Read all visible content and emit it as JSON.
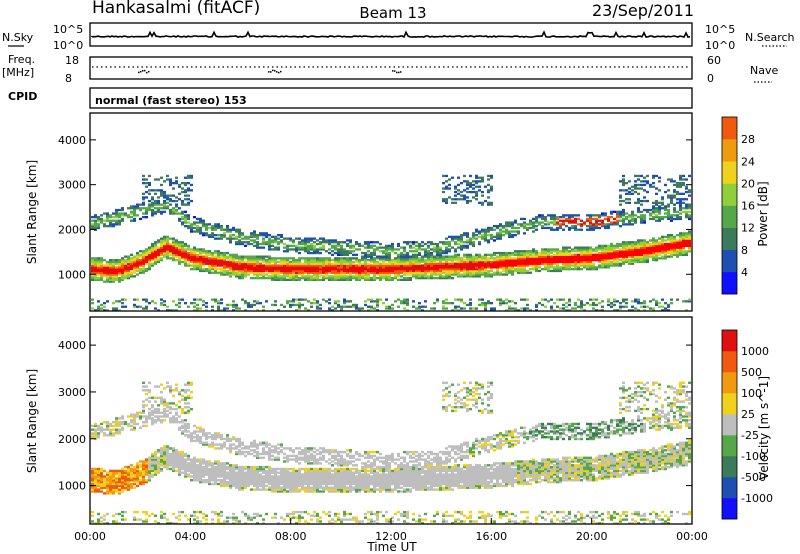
{
  "header": {
    "station": "Hankasalmi (fitACF)",
    "beam": "Beam 13",
    "date": "23/Sep/2011"
  },
  "status_panel": {
    "nsky_label": "N.Sky",
    "nsky_ymax": "10^5",
    "nsky_ymin": "10^0",
    "nsearch_label": "N.Search",
    "nsearch_ymax": "10^5",
    "nsearch_ymin": "10^0",
    "freq_label_top": "Freq.",
    "freq_label_unit": "[MHz]",
    "freq_ymax": "18",
    "freq_ymin": "8",
    "nave_label": "Nave",
    "nave_ymax": "60",
    "nave_ymin": "0",
    "cpid_label": "CPID",
    "cpid_text": "normal (fast stereo) 153"
  },
  "colors": {
    "background": "#ffffff",
    "ground_scatter": "#bebebe",
    "power_scale": [
      "#1010ff",
      "#1f4fb0",
      "#3b7a5a",
      "#55a84a",
      "#8fcf3a",
      "#f0d21c",
      "#f09a10",
      "#f05a10",
      "#e01010",
      "#ff0000"
    ],
    "velocity_scale": [
      "#1010ff",
      "#1f4fb0",
      "#3b7a5a",
      "#55a84a",
      "#bebebe",
      "#f0d21c",
      "#f09a10",
      "#f05a10",
      "#e01010"
    ]
  },
  "chart_data": [
    {
      "type": "heatmap",
      "name": "power",
      "xlabel": "",
      "ylabel": "Slant Range [km]",
      "xlim": [
        "00:00",
        "24:00"
      ],
      "ylim": [
        180,
        4600
      ],
      "y_ticks": [
        1000,
        2000,
        3000,
        4000
      ],
      "colorbar": {
        "label": "Power [dB]",
        "range": [
          0,
          30
        ],
        "ticks": [
          4,
          8,
          12,
          16,
          20,
          24,
          28
        ]
      },
      "echo_bands": [
        {
          "desc": "main F-region band",
          "points": [
            [
              "00:00",
              1100
            ],
            [
              "01:00",
              1050
            ],
            [
              "02:00",
              1250
            ],
            [
              "03:00",
              1600
            ],
            [
              "04:00",
              1350
            ],
            [
              "06:00",
              1150
            ],
            [
              "08:00",
              1100
            ],
            [
              "12:00",
              1100
            ],
            [
              "14:00",
              1150
            ],
            [
              "16:00",
              1200
            ],
            [
              "18:00",
              1300
            ],
            [
              "20:00",
              1350
            ],
            [
              "22:00",
              1500
            ],
            [
              "24:00",
              1700
            ]
          ],
          "power_db": 26
        },
        {
          "desc": "upper band",
          "points": [
            [
              "00:00",
              2100
            ],
            [
              "02:00",
              2400
            ],
            [
              "03:00",
              2550
            ],
            [
              "04:00",
              2100
            ],
            [
              "06:00",
              1800
            ],
            [
              "08:00",
              1650
            ],
            [
              "12:00",
              1500
            ],
            [
              "14:00",
              1600
            ],
            [
              "16:00",
              1900
            ],
            [
              "18:00",
              2150
            ],
            [
              "20:00",
              2150
            ],
            [
              "22:00",
              2300
            ],
            [
              "24:00",
              2400
            ]
          ],
          "power_db": 10
        }
      ]
    },
    {
      "type": "heatmap",
      "name": "velocity",
      "xlabel": "Time UT",
      "ylabel": "Slant Range [km]",
      "xlim": [
        "00:00",
        "24:00"
      ],
      "x_ticks": [
        "00:00",
        "04:00",
        "08:00",
        "12:00",
        "16:00",
        "20:00",
        "00:00"
      ],
      "ylim": [
        180,
        4600
      ],
      "y_ticks": [
        1000,
        2000,
        3000,
        4000
      ],
      "colorbar": {
        "label": "Velocity [m s^-1]",
        "range": [
          -1200,
          1200
        ],
        "ticks": [
          "1000",
          "500",
          "100",
          "25",
          "-25",
          "-100",
          "-500",
          "-1000"
        ]
      }
    }
  ]
}
